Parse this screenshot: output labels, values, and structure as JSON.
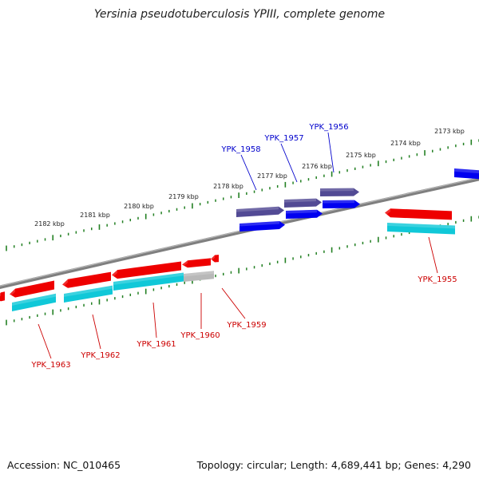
{
  "title": "Yersinia pseudotuberculosis YPIII, complete genome",
  "colors": {
    "backbone": "#7f7f7f",
    "tick": "#238023",
    "forward_gene": "#2a2aaf",
    "forward_gene_selected": "#524a94",
    "forward_cds": "#0000f0",
    "reverse_gene": "#ee0000",
    "reverse_cds": "#10c8d8",
    "pseudogene": "#b8b8b8",
    "forward_label": "#0000cc",
    "reverse_label": "#cc0000"
  },
  "scale_labels": [
    "2182 kbp",
    "2181 kbp",
    "2180 kbp",
    "2179 kbp",
    "2178 kbp",
    "2177 kbp",
    "2176 kbp",
    "2175 kbp",
    "2174 kbp",
    "2173 kbp"
  ],
  "genes": [
    {
      "label": "YPK_1958",
      "strand": "forward"
    },
    {
      "label": "YPK_1957",
      "strand": "forward"
    },
    {
      "label": "YPK_1956",
      "strand": "forward"
    },
    {
      "label": "YPK_1955",
      "strand": "reverse"
    },
    {
      "label": "YPK_1959",
      "strand": "reverse"
    },
    {
      "label": "YPK_1960",
      "strand": "reverse"
    },
    {
      "label": "YPK_1961",
      "strand": "reverse"
    },
    {
      "label": "YPK_1962",
      "strand": "reverse"
    },
    {
      "label": "YPK_1963",
      "strand": "reverse"
    }
  ],
  "footer": {
    "accession": "Accession: NC_010465",
    "topology": "Topology: circular; Length: 4,689,441 bp; Genes: 4,290"
  }
}
